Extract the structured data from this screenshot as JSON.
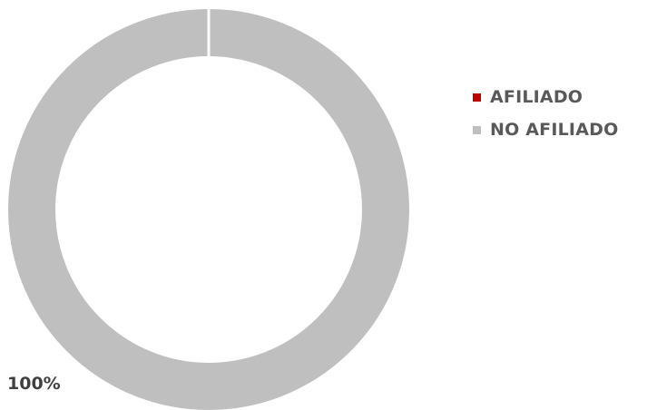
{
  "chart_data": {
    "type": "pie",
    "donut": true,
    "categories": [
      "AFILIADO",
      "NO AFILIADO"
    ],
    "values": [
      0,
      100
    ],
    "colors": [
      "#c00000",
      "#bfbfbf"
    ],
    "data_labels": [
      "",
      "100%"
    ],
    "legend_position": "right",
    "legend": {
      "entries": [
        {
          "label": "AFILIADO",
          "color": "#c00000"
        },
        {
          "label": "NO AFILIADO",
          "color": "#bfbfbf"
        }
      ]
    }
  }
}
